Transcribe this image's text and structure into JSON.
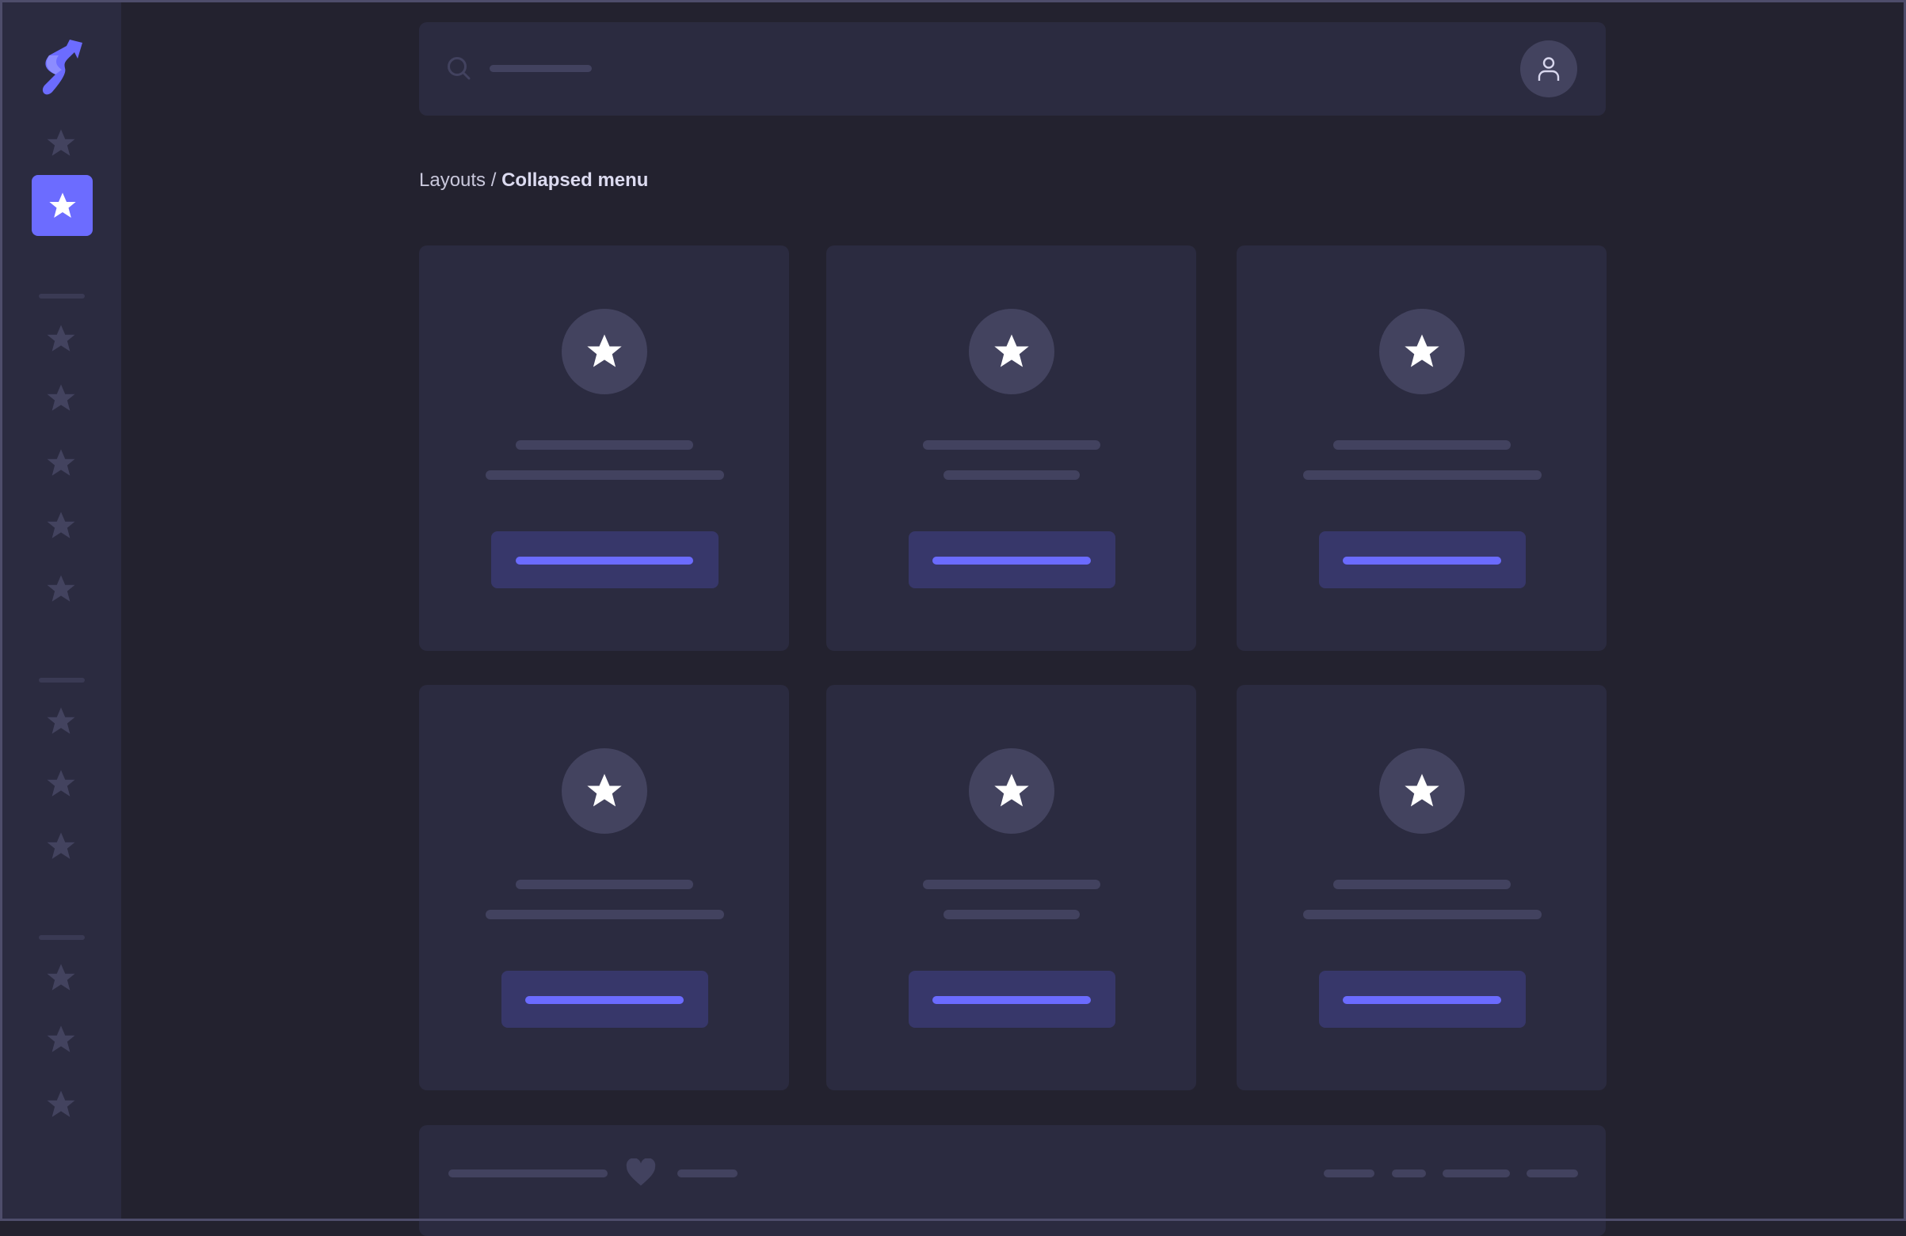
{
  "breadcrumb": {
    "parent": "Layouts",
    "separator": " / ",
    "current": "Collapsed menu"
  },
  "colors": {
    "accent": "#6c6cff",
    "sidebar_bg": "#2b2b40",
    "page_bg": "#23222f",
    "card_bg": "#2b2b40",
    "placeholder": "#42425f",
    "button_bg": "#37376a"
  },
  "icons": {
    "logo": "swirl-arrow-logo",
    "nav": "star-icon",
    "search": "search-icon",
    "user": "user-icon",
    "footer": "heart-icon"
  }
}
